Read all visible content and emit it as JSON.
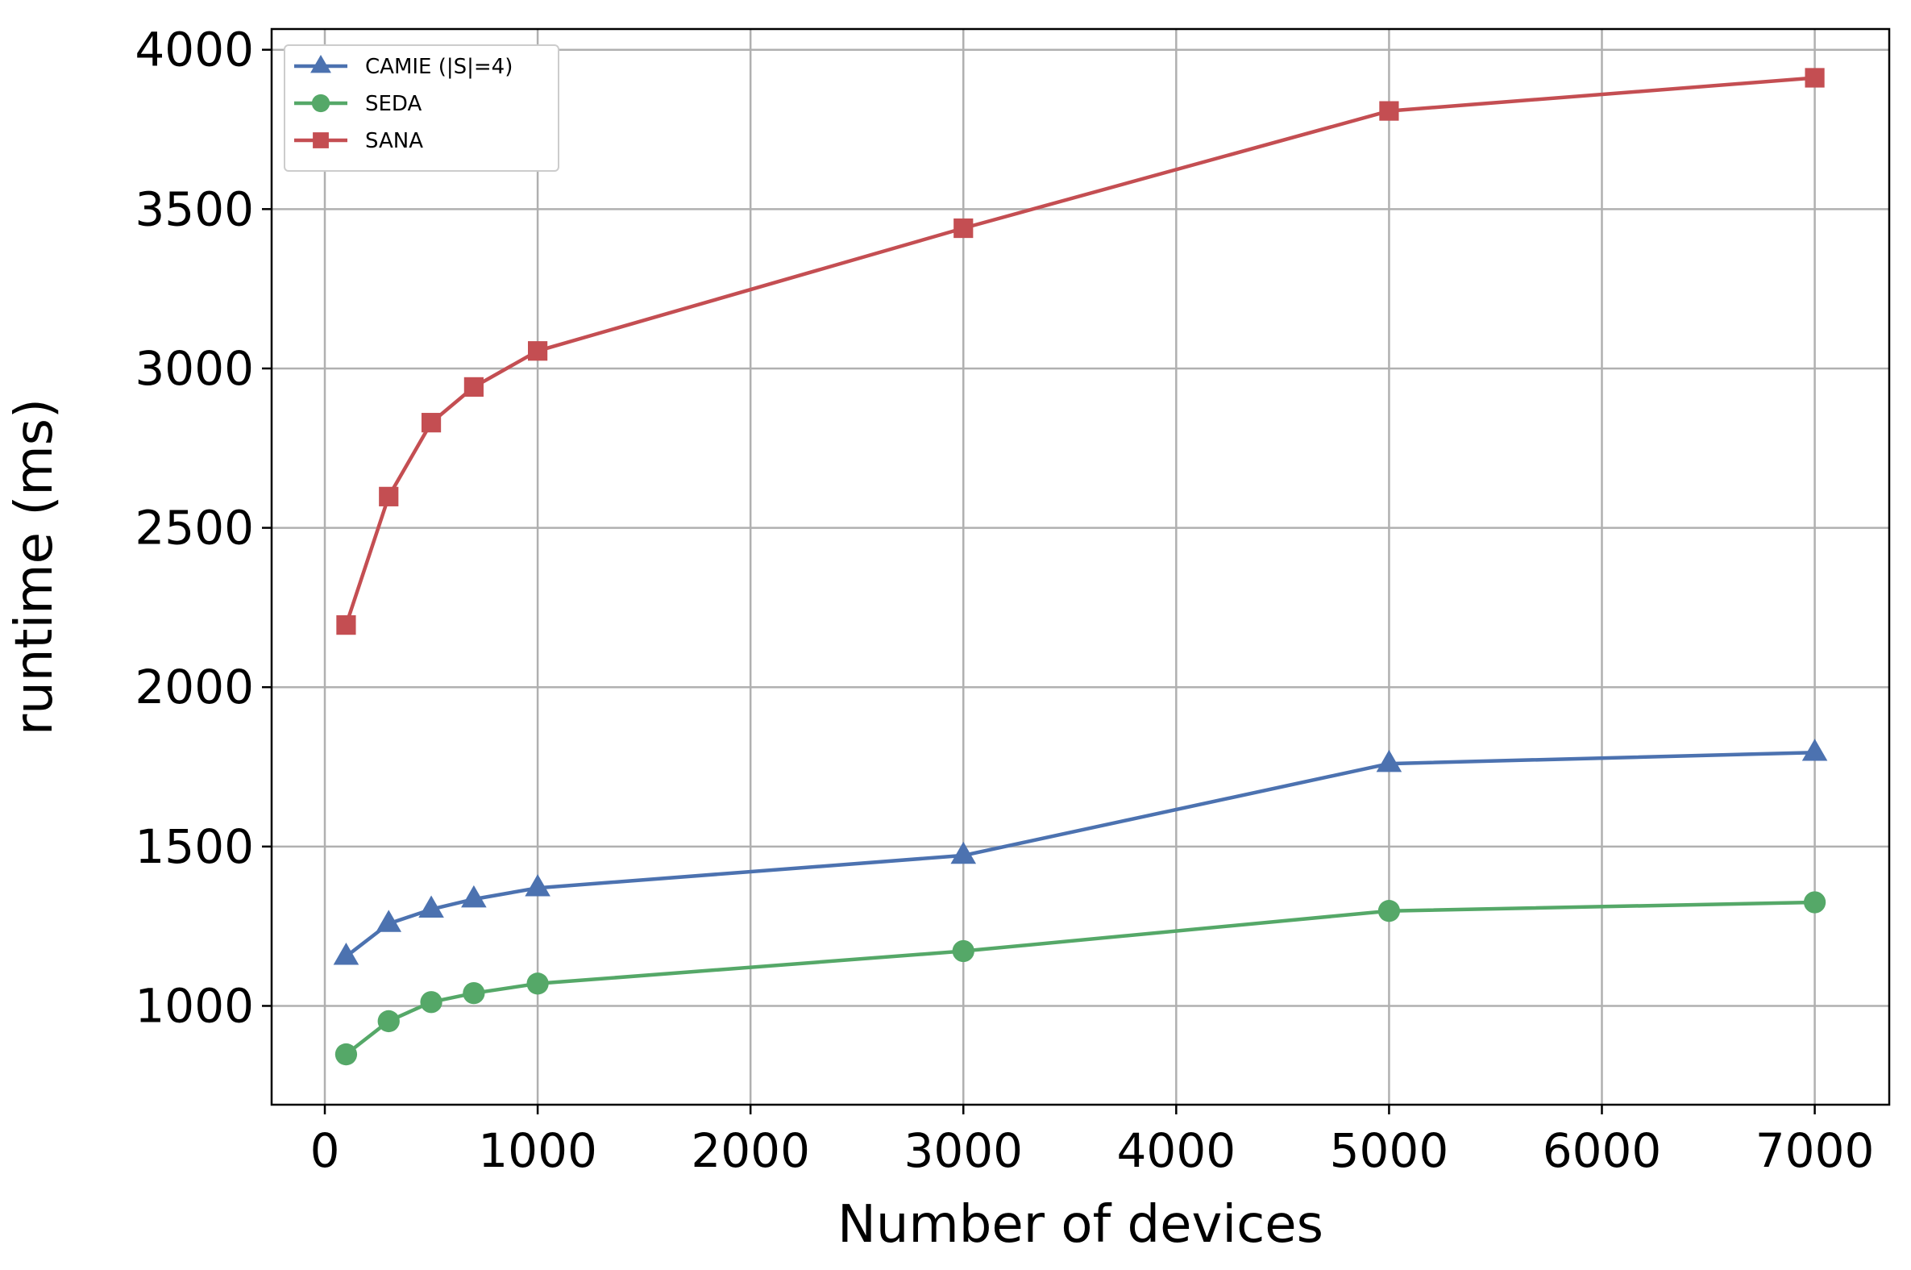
{
  "chart_data": {
    "type": "line",
    "title": "",
    "xlabel": "Number of devices",
    "ylabel": "runtime (ms)",
    "xlim": [
      -250,
      7350
    ],
    "ylim": [
      690,
      4065
    ],
    "grid": true,
    "legend_position": "upper-left",
    "x": [
      100,
      300,
      500,
      700,
      1000,
      3000,
      5000,
      7000
    ],
    "xticks": [
      0,
      1000,
      2000,
      3000,
      4000,
      5000,
      6000,
      7000
    ],
    "yticks": [
      1000,
      1500,
      2000,
      2500,
      3000,
      3500,
      4000
    ],
    "series": [
      {
        "name": "CAMIE (|S|=4)",
        "color": "#4c72b0",
        "marker": "triangle",
        "values": [
          1155,
          1258,
          1303,
          1335,
          1370,
          1472,
          1760,
          1795
        ]
      },
      {
        "name": "SEDA",
        "color": "#55a868",
        "marker": "circle",
        "values": [
          848,
          952,
          1012,
          1040,
          1070,
          1172,
          1298,
          1325
        ]
      },
      {
        "name": "SANA",
        "color": "#c44e52",
        "marker": "square",
        "values": [
          2195,
          2598,
          2830,
          2942,
          3055,
          3440,
          3808,
          3912
        ]
      }
    ]
  }
}
